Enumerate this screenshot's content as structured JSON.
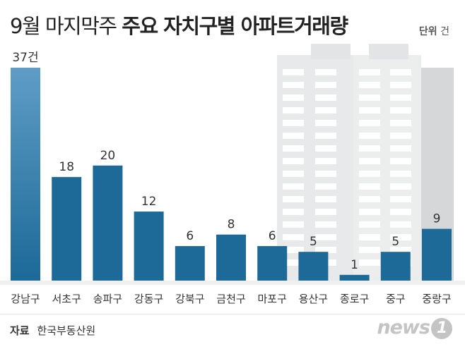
{
  "header": {
    "title_light": "9월 마지막주",
    "title_bold": "주요 자치구별 아파트거래량",
    "unit_label": "단위",
    "unit_value": "건"
  },
  "footer": {
    "source_label": "자료",
    "source_value": "한국부동산원",
    "logo_text": "news",
    "logo_badge": "1"
  },
  "colors": {
    "bar_top": "#5a97c0",
    "bar": "#1d6a98",
    "bar_dark": "#13557f",
    "building": "#e9eaec"
  },
  "chart_data": {
    "type": "bar",
    "title": "9월 마지막주 주요 자치구별 아파트거래량",
    "categories": [
      "강남구",
      "서초구",
      "송파구",
      "강동구",
      "강북구",
      "금천구",
      "마포구",
      "용산구",
      "종로구",
      "중구",
      "중랑구"
    ],
    "values": [
      37,
      18,
      20,
      12,
      6,
      8,
      6,
      5,
      1,
      5,
      9
    ],
    "data_labels": [
      "37건",
      "18",
      "20",
      "12",
      "6",
      "8",
      "6",
      "5",
      "1",
      "5",
      "9"
    ],
    "ylim": [
      0,
      37
    ],
    "unit": "건",
    "grid": false,
    "legend": "none"
  }
}
